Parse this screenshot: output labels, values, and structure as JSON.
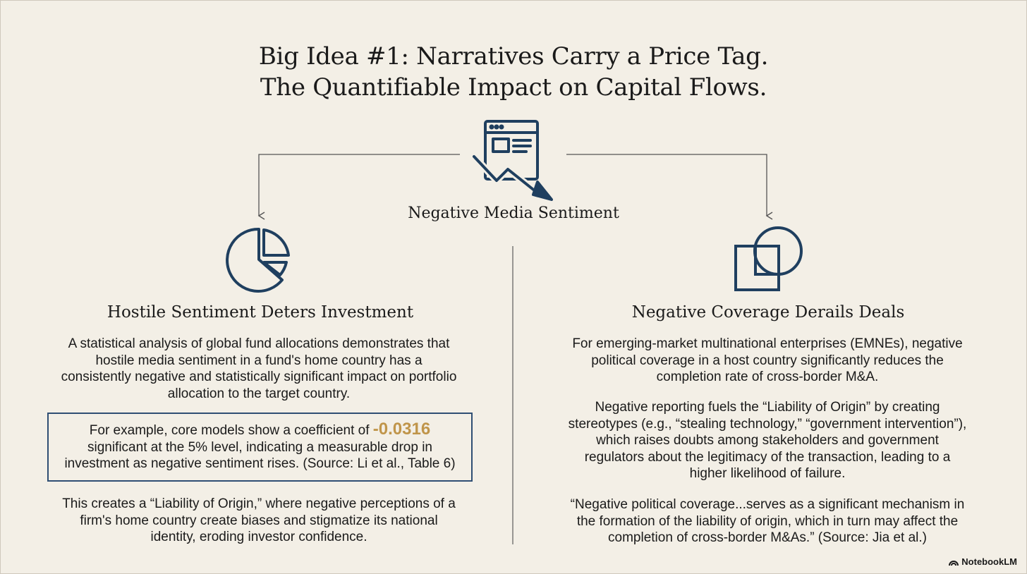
{
  "title": {
    "line1": "Big Idea #1: Narratives Carry a Price Tag.",
    "line2": "The Quantifiable Impact on Capital Flows."
  },
  "center": {
    "label": "Negative Media Sentiment",
    "icon": "news-down-trend-icon"
  },
  "left": {
    "icon": "pie-chart-icon",
    "heading": "Hostile Sentiment Deters Investment",
    "para1": [
      "A statistical analysis of global fund allocations demonstrates that",
      "hostile media sentiment in a fund's home country has a",
      "consistently negative and statistically significant impact on portfolio",
      "allocation to the target country."
    ],
    "callout": {
      "prefix": "For example, core models show a coefficient of ",
      "coefficient": "-0.0316",
      "line2": "significant at the 5% level, indicating a measurable drop in",
      "line3": "investment as negative sentiment rises. (Source: Li et al., Table 6)",
      "border_color": "#2f4e73",
      "highlight_color": "#c0954a"
    },
    "para2": [
      "This creates a “Liability of Origin,” where negative perceptions of a",
      "firm's home country create biases and stigmatize its national",
      "identity, eroding investor confidence."
    ]
  },
  "right": {
    "icon": "overlapping-shapes-icon",
    "heading": "Negative Coverage Derails Deals",
    "para1": [
      "For emerging-market multinational enterprises (EMNEs), negative",
      "political coverage in a host country significantly reduces the",
      "completion rate of cross-border M&A."
    ],
    "para2": [
      "Negative reporting fuels the “Liability of Origin” by creating",
      "stereotypes (e.g., “stealing technology,” “government intervention”),",
      "which raises doubts among stakeholders and government",
      "regulators about the legitimacy of the transaction, leading to a",
      "higher likelihood of failure."
    ],
    "para3": [
      "“Negative political coverage...serves as a significant mechanism in",
      "the formation of the liability of origin, which in turn may affect the",
      "completion of cross-border M&As.” (Source: Jia et al.)"
    ]
  },
  "brand": {
    "label": "NotebookLM",
    "icon": "notebooklm-logo-icon"
  },
  "colors": {
    "icon_navy": "#1f3f5f",
    "background": "#f3efe6"
  }
}
